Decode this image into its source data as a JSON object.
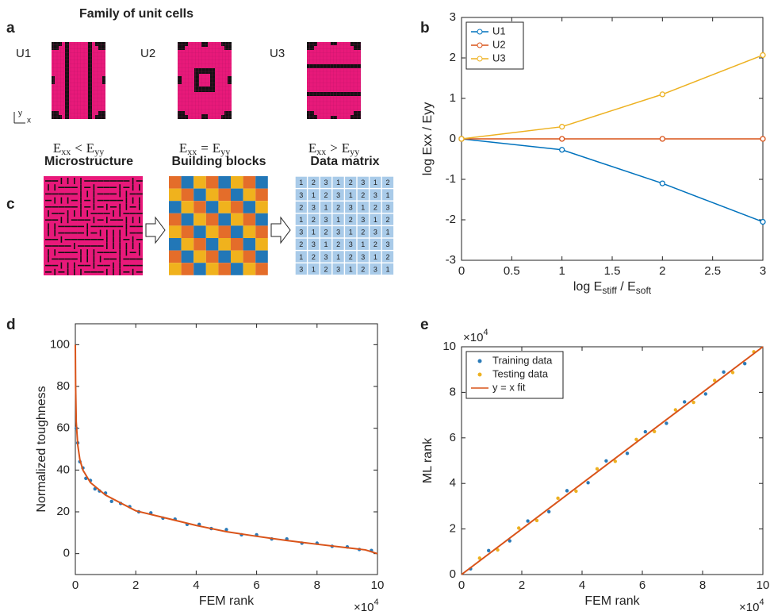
{
  "panel_labels": [
    "a",
    "b",
    "c",
    "d",
    "e"
  ],
  "unit_cells": {
    "title": "Family of unit cells",
    "axis_labels": [
      "y",
      "x"
    ],
    "cells": [
      {
        "label": "U1",
        "relation": {
          "left": {
            "base": "E",
            "sub": "xx"
          },
          "op": "<",
          "right": {
            "base": "E",
            "sub": "yy"
          }
        }
      },
      {
        "label": "U2",
        "relation": {
          "left": {
            "base": "E",
            "sub": "xx"
          },
          "op": "=",
          "right": {
            "base": "E",
            "sub": "yy"
          }
        }
      },
      {
        "label": "U3",
        "relation": {
          "left": {
            "base": "E",
            "sub": "xx"
          },
          "op": ">",
          "right": {
            "base": "E",
            "sub": "yy"
          }
        }
      }
    ]
  },
  "pipeline": {
    "steps": [
      "Microstructure",
      "Building blocks",
      "Data matrix"
    ],
    "block_colors": {
      "1": "#e46d2a",
      "2": "#2277b7",
      "3": "#f0b21d"
    },
    "matrix": [
      [
        1,
        2,
        3,
        1,
        2,
        3,
        1,
        2
      ],
      [
        3,
        1,
        2,
        3,
        1,
        2,
        3,
        1
      ],
      [
        2,
        3,
        1,
        2,
        3,
        1,
        2,
        3
      ],
      [
        1,
        2,
        3,
        1,
        2,
        3,
        1,
        2
      ],
      [
        3,
        1,
        2,
        3,
        1,
        2,
        3,
        1
      ],
      [
        2,
        3,
        1,
        2,
        3,
        1,
        2,
        3
      ],
      [
        1,
        2,
        3,
        1,
        2,
        3,
        1,
        2
      ],
      [
        3,
        1,
        2,
        3,
        1,
        2,
        3,
        1
      ]
    ]
  },
  "chart_data": [
    {
      "type": "line",
      "ylabel": "log Exx / Eyy",
      "xlabel": [
        {
          "text": "log E"
        },
        {
          "text": "stiff",
          "sub": true
        },
        {
          "text": " / E"
        },
        {
          "text": "soft",
          "sub": true
        }
      ],
      "x": [
        0,
        1,
        2,
        3
      ],
      "series": [
        {
          "name": "U1",
          "color": "#0072bd",
          "values": [
            0,
            -0.27,
            -1.1,
            -2.05
          ]
        },
        {
          "name": "U2",
          "color": "#d95319",
          "values": [
            0,
            0,
            0,
            0
          ]
        },
        {
          "name": "U3",
          "color": "#edb120",
          "values": [
            0,
            0.3,
            1.1,
            2.07
          ]
        }
      ],
      "xlim": [
        0,
        3
      ],
      "ylim": [
        -3,
        3
      ],
      "xticks": [
        0,
        0.5,
        1,
        1.5,
        2,
        2.5,
        3
      ],
      "yticks": [
        -3,
        -2,
        -1,
        0,
        1,
        2,
        3
      ],
      "legend": "northwest",
      "markers": true
    },
    {
      "type": "scatter",
      "ylabel": "Normalized toughness",
      "xlabel": "FEM rank",
      "x_multiplier": {
        "base": "×10",
        "exp": "4"
      },
      "series": [
        {
          "color": "#2a7ab8",
          "style": "points",
          "x": [
            300,
            800,
            1500,
            2500,
            3500,
            5000,
            6500,
            8000,
            10000,
            12000,
            15000,
            18000,
            21000,
            25000,
            29000,
            33000,
            37000,
            41000,
            45000,
            50000,
            55000,
            60000,
            65000,
            70000,
            75000,
            80000,
            85000,
            90000,
            94000,
            98000
          ],
          "values": [
            60,
            53,
            44,
            41,
            36,
            35,
            31,
            30,
            29,
            25,
            24,
            22.5,
            20,
            19.5,
            17,
            16.5,
            14,
            14,
            12,
            11.5,
            9,
            9,
            7,
            7,
            5,
            5,
            3.5,
            3.2,
            2,
            1.5
          ]
        },
        {
          "color": "#d95319",
          "style": "line",
          "x": [
            0,
            100,
            300,
            800,
            1500,
            2500,
            5000,
            10000,
            20000,
            30000,
            40000,
            50000,
            60000,
            70000,
            80000,
            90000,
            96000,
            100000
          ],
          "values": [
            100,
            80,
            63,
            52,
            45,
            40,
            34,
            28,
            20.5,
            17,
            13.5,
            10.5,
            8.3,
            6.3,
            4.5,
            2.8,
            1.8,
            0
          ]
        }
      ],
      "xlim": [
        0,
        100000
      ],
      "ylim": [
        -10,
        110
      ],
      "xticks": [
        {
          "value": 0,
          "label": "0"
        },
        {
          "value": 20000,
          "label": "2"
        },
        {
          "value": 40000,
          "label": "4"
        },
        {
          "value": 60000,
          "label": "6"
        },
        {
          "value": 80000,
          "label": "8"
        },
        {
          "value": 100000,
          "label": "10"
        }
      ],
      "yticks": [
        0,
        20,
        40,
        60,
        80,
        100
      ]
    },
    {
      "type": "scatter",
      "ylabel": "ML rank",
      "xlabel": "FEM rank",
      "x_multiplier": {
        "base": "×10",
        "exp": "4"
      },
      "y_multiplier": {
        "base": "×10",
        "exp": "4"
      },
      "series": [
        {
          "name": "Training data",
          "color": "#2a7ab8",
          "style": "points",
          "x": [
            3000,
            9000,
            16000,
            22000,
            29000,
            35000,
            42000,
            48000,
            55000,
            61000,
            68000,
            74000,
            81000,
            87000,
            94000
          ],
          "values": [
            2500,
            10500,
            14800,
            23500,
            27600,
            36800,
            40300,
            49900,
            53200,
            62700,
            66400,
            75800,
            79300,
            88900,
            92600
          ]
        },
        {
          "name": "Testing data",
          "color": "#edb120",
          "style": "points",
          "x": [
            6000,
            12000,
            19000,
            25000,
            32000,
            38000,
            45000,
            51000,
            58000,
            64000,
            71000,
            77000,
            84000,
            90000,
            97000
          ],
          "values": [
            7200,
            10800,
            20400,
            23700,
            33500,
            36600,
            46400,
            49700,
            59300,
            62800,
            72300,
            75600,
            85200,
            88700,
            97800
          ]
        },
        {
          "name": "y = x fit",
          "color": "#d95319",
          "style": "line",
          "x": [
            0,
            100000
          ],
          "values": [
            0,
            100000
          ]
        }
      ],
      "xlim": [
        0,
        100000
      ],
      "ylim": [
        0,
        100000
      ],
      "xticks": [
        {
          "value": 0,
          "label": "0"
        },
        {
          "value": 20000,
          "label": "2"
        },
        {
          "value": 40000,
          "label": "4"
        },
        {
          "value": 60000,
          "label": "6"
        },
        {
          "value": 80000,
          "label": "8"
        },
        {
          "value": 100000,
          "label": "10"
        }
      ],
      "yticks": [
        {
          "value": 0,
          "label": "0"
        },
        {
          "value": 20000,
          "label": "2"
        },
        {
          "value": 40000,
          "label": "4"
        },
        {
          "value": 60000,
          "label": "6"
        },
        {
          "value": 80000,
          "label": "8"
        },
        {
          "value": 100000,
          "label": "10"
        }
      ],
      "legend": "northwest"
    }
  ]
}
